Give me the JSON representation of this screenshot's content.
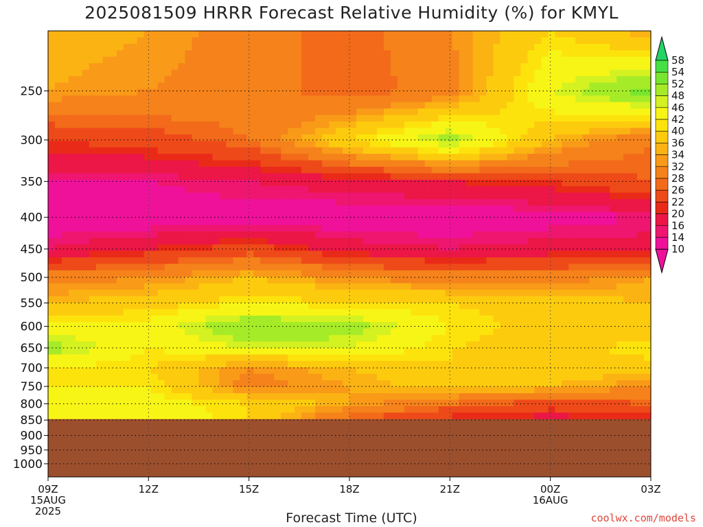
{
  "title": "2025081509 HRRR Forecast Relative Humidity (%) for KMYL",
  "credit": "coolwx.com/models",
  "chart_data": {
    "type": "heatmap",
    "title": "2025081509 HRRR Forecast Relative Humidity (%) for KMYL",
    "xlabel": "Forecast Time (UTC)",
    "ylabel": "",
    "x_range_hours": [
      0,
      18
    ],
    "x_ticks": [
      {
        "hour": 0,
        "lines": [
          "09Z",
          "15AUG",
          "2025"
        ]
      },
      {
        "hour": 3,
        "lines": [
          "12Z"
        ]
      },
      {
        "hour": 6,
        "lines": [
          "15Z"
        ]
      },
      {
        "hour": 9,
        "lines": [
          "18Z"
        ]
      },
      {
        "hour": 12,
        "lines": [
          "21Z"
        ]
      },
      {
        "hour": 15,
        "lines": [
          "00Z",
          "16AUG"
        ]
      },
      {
        "hour": 18,
        "lines": [
          "03Z"
        ]
      }
    ],
    "y_range_hPa": [
      1050,
      200
    ],
    "y_ticks": [
      250,
      300,
      350,
      400,
      450,
      500,
      550,
      600,
      650,
      700,
      750,
      800,
      850,
      900,
      950,
      1000
    ],
    "surface_pressure_hPa": 847,
    "grid": true,
    "colorbar": {
      "labels": [
        58,
        54,
        52,
        48,
        46,
        42,
        40,
        36,
        34,
        32,
        28,
        26,
        22,
        20,
        16,
        14,
        10
      ],
      "colors": [
        "#22d467",
        "#46df44",
        "#78e52e",
        "#a5eb28",
        "#d4f121",
        "#f7f515",
        "#fde30c",
        "#fdcb0e",
        "#fbb313",
        "#f99a18",
        "#f5821a",
        "#f26a1a",
        "#ee4a19",
        "#ea2a18",
        "#ec1647",
        "#ef1670",
        "#f0119a"
      ]
    },
    "levels_hPa": [
      200,
      250,
      300,
      350,
      400,
      450,
      500,
      550,
      600,
      650,
      700,
      750,
      800,
      850
    ],
    "times_hours": [
      0,
      3,
      6,
      9,
      12,
      15,
      18
    ],
    "rh_percent": [
      [
        36,
        34,
        30,
        26,
        32,
        40,
        34
      ],
      [
        34,
        32,
        30,
        26,
        30,
        46,
        54
      ],
      [
        22,
        24,
        28,
        40,
        50,
        36,
        28
      ],
      [
        14,
        14,
        16,
        18,
        20,
        22,
        26
      ],
      [
        11,
        11,
        12,
        11,
        11,
        12,
        14
      ],
      [
        16,
        20,
        24,
        18,
        16,
        18,
        18
      ],
      [
        30,
        32,
        36,
        32,
        30,
        30,
        34
      ],
      [
        36,
        38,
        42,
        40,
        40,
        38,
        36
      ],
      [
        44,
        44,
        52,
        50,
        42,
        38,
        36
      ],
      [
        50,
        42,
        46,
        46,
        40,
        38,
        42
      ],
      [
        42,
        40,
        32,
        36,
        40,
        38,
        38
      ],
      [
        42,
        42,
        30,
        34,
        38,
        36,
        32
      ],
      [
        46,
        44,
        40,
        34,
        28,
        24,
        26
      ],
      [
        46,
        46,
        40,
        26,
        20,
        18,
        20
      ]
    ]
  }
}
